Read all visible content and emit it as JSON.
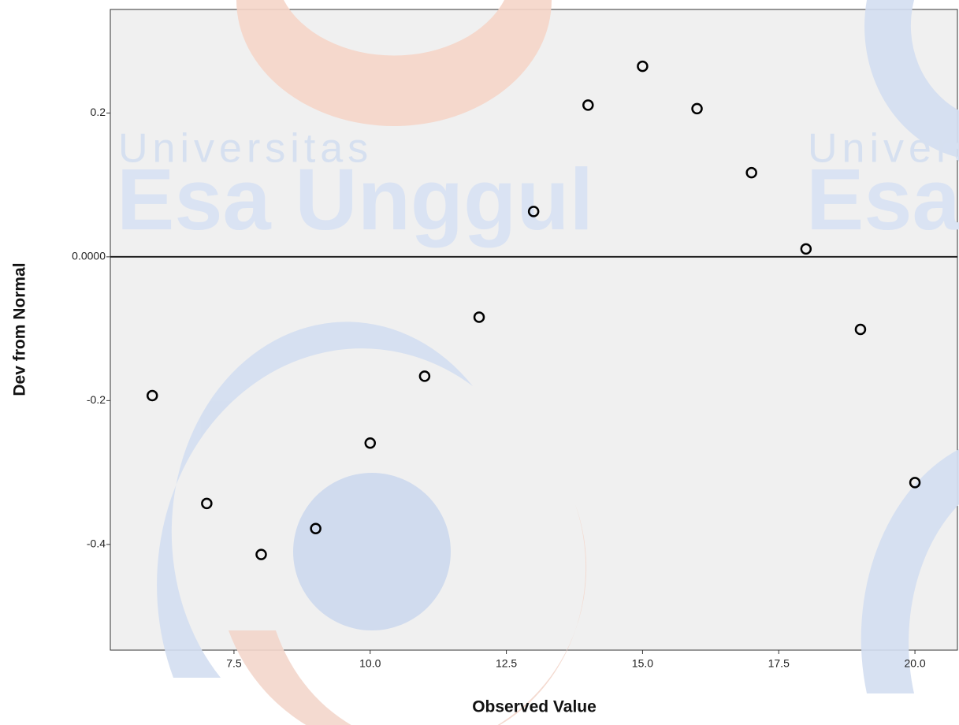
{
  "chart_data": {
    "type": "scatter",
    "xlabel": "Observed Value",
    "ylabel": "Dev from Normal",
    "watermark": [
      "Universitas",
      "Esa Unggul"
    ],
    "x": [
      6,
      7,
      8,
      9,
      10,
      11,
      12,
      13,
      14,
      15,
      16,
      17,
      18,
      19,
      20
    ],
    "values": [
      -0.193,
      -0.343,
      -0.414,
      -0.378,
      -0.259,
      -0.166,
      -0.084,
      0.063,
      0.211,
      0.265,
      0.206,
      0.117,
      0.011,
      -0.101,
      -0.314
    ],
    "color": "#000000",
    "xlim": [
      5.23,
      20.78
    ],
    "ylim": [
      -0.547,
      0.344
    ],
    "xticks": [
      7.5,
      {
        "value": 10,
        "label": "10.0"
      },
      12.5,
      {
        "value": 15,
        "label": "15.0"
      },
      17.5,
      {
        "value": 20,
        "label": "20.0"
      }
    ],
    "yticks": [
      {
        "value": 0.2,
        "label": "0.2"
      },
      {
        "value": 0,
        "label": "0.0000"
      },
      {
        "value": -0.2,
        "label": "-0.2"
      },
      {
        "value": -0.4,
        "label": "-0.4"
      }
    ],
    "grid": false
  }
}
